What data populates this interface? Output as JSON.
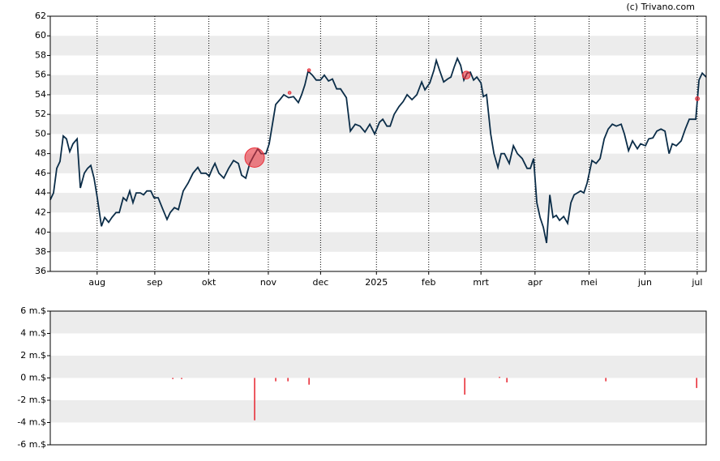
{
  "source": "(c) Trivano.com",
  "chart_data": [
    {
      "type": "line",
      "xlim": [
        0,
        364
      ],
      "xticks": [
        {
          "value": 26,
          "label": "aug"
        },
        {
          "value": 58,
          "label": "sep"
        },
        {
          "value": 88,
          "label": "okt"
        },
        {
          "value": 121,
          "label": "nov"
        },
        {
          "value": 150,
          "label": "dec"
        },
        {
          "value": 181,
          "label": "2025"
        },
        {
          "value": 210,
          "label": "feb"
        },
        {
          "value": 239,
          "label": "mrt"
        },
        {
          "value": 269,
          "label": "apr"
        },
        {
          "value": 299,
          "label": "mei"
        },
        {
          "value": 330,
          "label": "jun"
        },
        {
          "value": 359,
          "label": "jul"
        }
      ],
      "ylim": [
        36,
        62
      ],
      "yticks": [
        36,
        38,
        40,
        42,
        44,
        46,
        48,
        50,
        52,
        54,
        56,
        58,
        60,
        62
      ],
      "grid": true,
      "series": [
        {
          "color": "#0b2d48",
          "x": [
            0,
            1.8,
            3.6,
            5.4,
            7.2,
            9,
            10.8,
            12.6,
            14.9,
            16.7,
            18.9,
            20.7,
            22.5,
            24.3,
            26.1,
            28.4,
            30.2,
            32.4,
            34.2,
            36.5,
            38.3,
            40.5,
            42.3,
            44.1,
            45.9,
            47.7,
            50,
            51.8,
            53.6,
            55.8,
            57.6,
            59.9,
            62.1,
            64.8,
            66.6,
            68.9,
            71.1,
            73.8,
            76.5,
            79.2,
            81.9,
            83.7,
            86.4,
            88.2,
            90,
            91.4,
            93.6,
            96.3,
            99,
            101.7,
            104.4,
            106.2,
            108.5,
            110.7,
            113,
            115.2,
            117,
            119.7,
            121.5,
            123.3,
            125.1,
            127.4,
            129.6,
            132.3,
            135,
            137.7,
            139.5,
            141.3,
            143.1,
            145.4,
            147.6,
            149.9,
            152.1,
            154.4,
            156.6,
            158.9,
            161.1,
            164.3,
            166.5,
            169.2,
            171.9,
            174.6,
            177.3,
            180,
            182.7,
            184.5,
            186.8,
            188.6,
            190.8,
            193.5,
            195.8,
            198,
            200.7,
            203.4,
            206.1,
            207.9,
            210.6,
            212.9,
            214.2,
            216,
            218.3,
            220.5,
            222.3,
            224.1,
            225.9,
            227.7,
            229.5,
            231.3,
            233.1,
            234.9,
            236.7,
            239,
            240.3,
            242.1,
            244.4,
            246.2,
            248.4,
            250.2,
            252,
            254.7,
            257,
            259.2,
            261.9,
            264.6,
            266.4,
            268.2,
            270,
            271.8,
            273.6,
            275.4,
            277.2,
            279,
            280.8,
            282.6,
            284.9,
            287.1,
            288.9,
            290.7,
            292.5,
            294.3,
            296.1,
            297.9,
            300.6,
            302.9,
            305.1,
            307.4,
            309.6,
            311.9,
            314.1,
            316.8,
            318.6,
            320.9,
            323.1,
            325.8,
            327.6,
            330.3,
            332.1,
            334.4,
            336.6,
            338.9,
            341.1,
            343.4,
            345.2,
            347.4,
            350.1,
            352.4,
            354.6,
            356.9,
            358.2,
            360,
            361.8,
            364
          ],
          "values": [
            43.3,
            44,
            46.5,
            47.2,
            49.8,
            49.5,
            48.2,
            49,
            49.5,
            44.5,
            46,
            46.5,
            46.8,
            45.5,
            43.5,
            40.6,
            41.5,
            41,
            41.5,
            42,
            42,
            43.5,
            43.2,
            44.2,
            43,
            44,
            44,
            43.8,
            44.2,
            44.2,
            43.5,
            43.5,
            42.5,
            41.3,
            42,
            42.5,
            42.3,
            44.2,
            45,
            46,
            46.6,
            46,
            46,
            45.7,
            46.5,
            47,
            46,
            45.5,
            46.5,
            47.3,
            47,
            45.8,
            45.5,
            47,
            47.8,
            48.5,
            48,
            48,
            49,
            51,
            53,
            53.5,
            54,
            53.7,
            53.8,
            53.2,
            54,
            55,
            56.4,
            56,
            55.5,
            55.5,
            56,
            55.4,
            55.6,
            54.6,
            54.6,
            53.7,
            50.3,
            51,
            50.8,
            50.2,
            51,
            50,
            51.2,
            51.5,
            50.8,
            50.8,
            52,
            52.8,
            53.3,
            54,
            53.5,
            54,
            55.3,
            54.5,
            55.2,
            56.5,
            57.5,
            56.5,
            55.3,
            55.6,
            55.8,
            56.8,
            57.7,
            57,
            55.5,
            56.2,
            56.3,
            55.5,
            55.8,
            55.2,
            53.8,
            54,
            50,
            48,
            46.6,
            48,
            48,
            47,
            48.8,
            48,
            47.5,
            46.5,
            46.5,
            47.5,
            43,
            41.5,
            40.5,
            38.9,
            43.8,
            41.5,
            41.7,
            41.2,
            41.6,
            40.9,
            43,
            43.8,
            44,
            44.2,
            44,
            45,
            47.3,
            47,
            47.5,
            49.5,
            50.5,
            51,
            50.8,
            51,
            50,
            48.3,
            49.3,
            48.5,
            49,
            48.8,
            49.5,
            49.6,
            50.3,
            50.5,
            50.3,
            48,
            49,
            48.8,
            49.3,
            50.5,
            51.5,
            51.5,
            51.5,
            55.5,
            56.2,
            55.8
          ]
        }
      ],
      "events": {
        "color": "#e8303a",
        "x": [
          113.4,
          132.8,
          143.6,
          230.9,
          359.1
        ],
        "values": [
          47.6,
          54.2,
          56.5,
          56,
          53.6
        ],
        "sizes": [
          10,
          1.5,
          1.5,
          4,
          2
        ]
      }
    },
    {
      "type": "bar",
      "xlim": [
        0,
        364
      ],
      "ylim": [
        -6,
        6
      ],
      "yticks": [
        {
          "value": -6,
          "label": "-6 m.$"
        },
        {
          "value": -4,
          "label": "-4 m.$"
        },
        {
          "value": -2,
          "label": "-2 m.$"
        },
        {
          "value": 0,
          "label": "0 m.$"
        },
        {
          "value": 2,
          "label": "2 m.$"
        },
        {
          "value": 4,
          "label": "4 m.$"
        },
        {
          "value": 6,
          "label": "6 m.$"
        }
      ],
      "grid": true,
      "series": [
        {
          "color": "#e8303a",
          "x": [
            68,
            72.9,
            113.4,
            125.1,
            131.9,
            143.6,
            230,
            249.3,
            253.4,
            308.3,
            358.7
          ],
          "values": [
            -0.1,
            -0.1,
            -3.8,
            -0.3,
            -0.3,
            -0.6,
            -1.5,
            0.1,
            -0.4,
            -0.3,
            -0.9
          ]
        }
      ]
    }
  ]
}
